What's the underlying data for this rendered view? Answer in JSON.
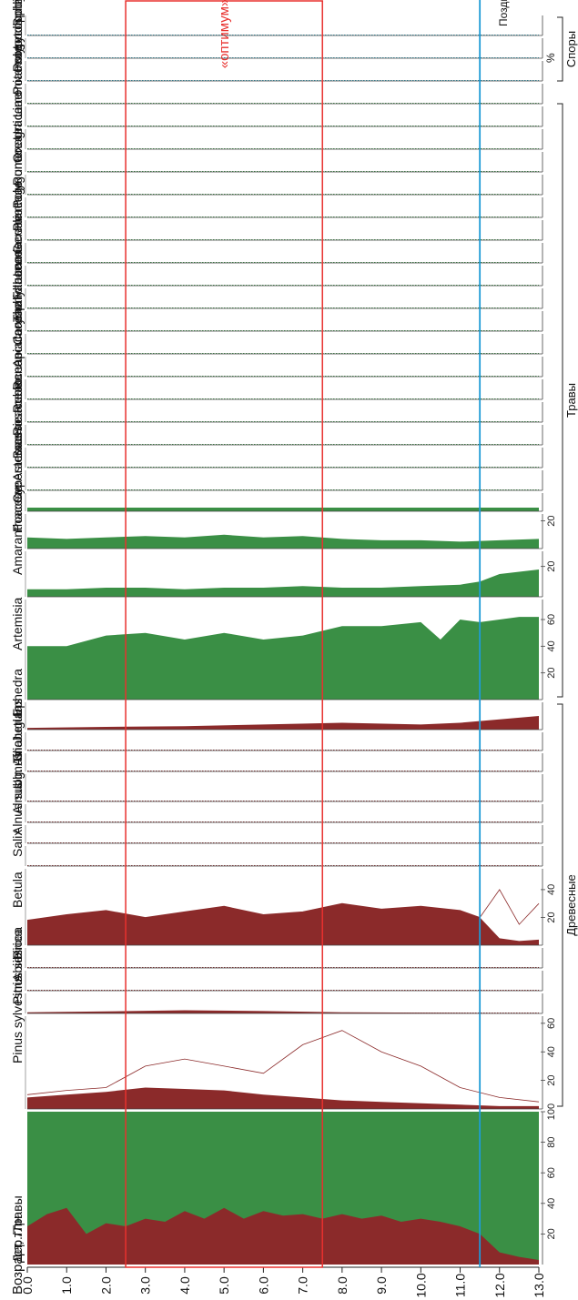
{
  "chart_data": {
    "type": "area",
    "title": "",
    "x_label": "Возраст, тлн",
    "x_ticks": [
      "0.0",
      "1.0",
      "2.0",
      "3.0",
      "4.0",
      "5.0",
      "6.0",
      "7.0",
      "8.0",
      "9.0",
      "10.0",
      "11.0",
      "12.0",
      "13.0"
    ],
    "x_range": [
      0,
      13
    ],
    "percent_label": "%",
    "optimum_label": "«оптимум»",
    "optimum_range_kyr": [
      2.5,
      7.5
    ],
    "younger_dryas_label": "Поздний дриас",
    "younger_dryas_kyr": 11.5,
    "groups": [
      {
        "label": "Древесные",
        "taxa": [
          "Pinus sylvestris",
          "Pinus sibirica",
          "Abies",
          "Picea",
          "Betula",
          "Salix",
          "Alnus subg. Alnobetula",
          "Alnus",
          "Ulmus",
          "Tilia",
          "Juglans",
          "Ephedra"
        ]
      },
      {
        "label": "Травы",
        "taxa": [
          "Artemisia",
          "Amaranthaceae",
          "Poaceae",
          "Cyperaceae",
          "Asteraceae",
          "Brassicaceae",
          "Rosaceae",
          "Rubiaceae",
          "Ranunculaceae",
          "Apiaceae",
          "Caryophyllaceae",
          "Thalictrum",
          "Fabaceae",
          "Lamiaceae",
          "Geraniaceae",
          "Plantago",
          "Polygonaceae",
          "Rumex",
          "Onagraceae",
          "Urtica",
          "Limoniaceae",
          "Potamogeton"
        ]
      },
      {
        "label": "Споры",
        "taxa": [
          "Polypodiophyta",
          "Lycopodium",
          "Sphagnum"
        ]
      }
    ],
    "colors": {
      "trees": "#8b2a2a",
      "herbs": "#3a8f45",
      "spores": "#2f9ab4",
      "optimum": "#e8312e",
      "dryas": "#1e9ad6"
    },
    "ratio": {
      "name": "Дер./Травы",
      "ticks": [
        "20",
        "40",
        "60",
        "80",
        "100"
      ],
      "trees_kyr": [
        0,
        0.5,
        1,
        1.5,
        2,
        2.5,
        3,
        3.5,
        4,
        4.5,
        5,
        5.5,
        6,
        6.5,
        7,
        7.5,
        8,
        8.5,
        9,
        9.5,
        10,
        10.5,
        11,
        11.5,
        12,
        12.5,
        13
      ],
      "trees_pct": [
        25,
        33,
        37,
        20,
        27,
        25,
        30,
        28,
        35,
        30,
        37,
        30,
        35,
        32,
        33,
        30,
        33,
        30,
        32,
        28,
        30,
        28,
        25,
        20,
        8,
        5,
        3
      ]
    },
    "taxa": [
      {
        "name": "Pinus sylvestris",
        "color": "trees",
        "ticks": [
          "20",
          "40",
          "60"
        ],
        "max": 65,
        "kyr": [
          0,
          1,
          2,
          3,
          4,
          5,
          6,
          7,
          8,
          9,
          10,
          11,
          12,
          13
        ],
        "fill": [
          8,
          10,
          12,
          15,
          14,
          13,
          10,
          8,
          6,
          5,
          4,
          3,
          2,
          2
        ],
        "line": [
          10,
          13,
          15,
          30,
          35,
          30,
          25,
          45,
          55,
          40,
          30,
          15,
          8,
          5
        ]
      },
      {
        "name": "Pinus sibirica",
        "color": "trees",
        "max": 5,
        "kyr": [
          0,
          2,
          4,
          6,
          8,
          10,
          12,
          13
        ],
        "fill": [
          0.3,
          0.5,
          0.8,
          0.6,
          0.3,
          0.2,
          0.1,
          0.1
        ]
      },
      {
        "name": "Abies",
        "color": "trees",
        "max": 5,
        "kyr": [
          0,
          2,
          4,
          6,
          8,
          10,
          12,
          13
        ],
        "fill": [
          0,
          0,
          0,
          0,
          0,
          0,
          0,
          0
        ]
      },
      {
        "name": "Picea",
        "color": "trees",
        "max": 5,
        "kyr": [
          0,
          2,
          4,
          6,
          8,
          10,
          12,
          13
        ],
        "fill": [
          0,
          0,
          0,
          0,
          0,
          0,
          0,
          0
        ]
      },
      {
        "name": "Betula",
        "color": "trees",
        "ticks": [
          "20",
          "40"
        ],
        "max": 55,
        "kyr": [
          0,
          1,
          2,
          3,
          4,
          5,
          6,
          7,
          8,
          9,
          10,
          11,
          11.5,
          12,
          12.5,
          13
        ],
        "fill": [
          18,
          22,
          25,
          20,
          24,
          28,
          22,
          24,
          30,
          26,
          28,
          25,
          20,
          5,
          3,
          4
        ],
        "line": [
          18,
          22,
          25,
          20,
          24,
          28,
          22,
          24,
          30,
          26,
          28,
          25,
          20,
          40,
          15,
          30
        ]
      },
      {
        "name": "Salix",
        "color": "trees",
        "max": 5,
        "kyr": [
          0,
          2,
          4,
          6,
          8,
          10,
          12,
          13
        ],
        "fill": [
          0,
          0,
          0,
          0,
          0,
          0,
          0,
          0
        ]
      },
      {
        "name": "Alnus subg. Alnobetula",
        "color": "trees",
        "max": 5,
        "kyr": [
          0,
          2,
          4,
          6,
          8,
          10,
          12,
          13
        ],
        "fill": [
          0,
          0,
          0,
          0,
          0,
          0,
          0,
          0
        ]
      },
      {
        "name": "Alnus",
        "color": "trees",
        "max": 5,
        "kyr": [
          0,
          2,
          4,
          6,
          8,
          10,
          12,
          13
        ],
        "fill": [
          0,
          0,
          0,
          0,
          0,
          0,
          0,
          0
        ]
      },
      {
        "name": "Ulmus",
        "color": "trees",
        "max": 5,
        "kyr": [
          0,
          2,
          4,
          6,
          8,
          10,
          12,
          13
        ],
        "fill": [
          0,
          0,
          0,
          0,
          0,
          0,
          0,
          0
        ]
      },
      {
        "name": "Tilia",
        "color": "trees",
        "max": 5,
        "kyr": [
          0,
          2,
          4,
          6,
          8,
          10,
          12,
          13
        ],
        "fill": [
          0,
          0,
          0,
          0,
          0,
          0,
          0,
          0
        ]
      },
      {
        "name": "Juglans",
        "color": "trees",
        "max": 5,
        "kyr": [
          0,
          2,
          4,
          6,
          8,
          10,
          12,
          13
        ],
        "fill": [
          0,
          0,
          0,
          0,
          0,
          0,
          0,
          0
        ]
      },
      {
        "name": "Ephedra",
        "color": "trees",
        "max": 8,
        "kyr": [
          0,
          2,
          4,
          6,
          8,
          10,
          11,
          12,
          13
        ],
        "fill": [
          0.5,
          0.8,
          1,
          1.5,
          2,
          1.5,
          2,
          3,
          4
        ]
      },
      {
        "name": "Artemisia",
        "color": "herbs",
        "ticks": [
          "20",
          "40",
          "60"
        ],
        "max": 75,
        "kyr": [
          0,
          1,
          2,
          3,
          4,
          5,
          6,
          7,
          8,
          9,
          10,
          10.5,
          11,
          11.5,
          12,
          12.5,
          13
        ],
        "fill": [
          40,
          40,
          48,
          50,
          45,
          50,
          45,
          48,
          55,
          55,
          58,
          45,
          60,
          58,
          60,
          62,
          62
        ]
      },
      {
        "name": "Amaranthaceae",
        "color": "herbs",
        "ticks": [
          "20"
        ],
        "max": 30,
        "kyr": [
          0,
          1,
          2,
          3,
          4,
          5,
          6,
          7,
          8,
          9,
          10,
          11,
          11.5,
          12,
          13
        ],
        "fill": [
          5,
          5,
          6,
          6,
          5,
          6,
          6,
          7,
          6,
          6,
          7,
          8,
          10,
          15,
          18
        ]
      },
      {
        "name": "Poaceae",
        "color": "herbs",
        "ticks": [
          "20"
        ],
        "max": 25,
        "kyr": [
          0,
          1,
          2,
          3,
          4,
          5,
          6,
          7,
          8,
          9,
          10,
          11,
          12,
          13
        ],
        "fill": [
          8,
          7,
          8,
          9,
          8,
          10,
          8,
          9,
          7,
          6,
          6,
          5,
          6,
          7
        ]
      },
      {
        "name": "Cyperaceae",
        "color": "herbs",
        "max": 5,
        "kyr": [
          0,
          2,
          4,
          6,
          8,
          10,
          12,
          13
        ],
        "fill": [
          1,
          1,
          1,
          1,
          1,
          1,
          1,
          1
        ]
      },
      {
        "name": "Asteraceae",
        "color": "herbs",
        "max": 5,
        "kyr": [
          0,
          2,
          4,
          6,
          8,
          10,
          12,
          13
        ],
        "fill": [
          0,
          0,
          0,
          0,
          0,
          0,
          0,
          0
        ]
      },
      {
        "name": "Brassicaceae",
        "color": "herbs",
        "max": 5,
        "kyr": [
          0,
          2,
          4,
          6,
          8,
          10,
          12,
          13
        ],
        "fill": [
          0,
          0,
          0,
          0,
          0,
          0,
          0,
          0
        ]
      },
      {
        "name": "Rosaceae",
        "color": "herbs",
        "max": 5,
        "kyr": [
          0,
          2,
          4,
          6,
          8,
          10,
          12,
          13
        ],
        "fill": [
          0,
          0,
          0,
          0,
          0,
          0,
          0,
          0
        ]
      },
      {
        "name": "Rubiaceae",
        "color": "herbs",
        "max": 5,
        "kyr": [
          0,
          2,
          4,
          6,
          8,
          10,
          12,
          13
        ],
        "fill": [
          0,
          0,
          0,
          0,
          0,
          0,
          0,
          0
        ]
      },
      {
        "name": "Ranunculaceae",
        "color": "herbs",
        "max": 5,
        "kyr": [
          0,
          2,
          4,
          6,
          8,
          10,
          12,
          13
        ],
        "fill": [
          0,
          0,
          0,
          0,
          0,
          0,
          0,
          0
        ]
      },
      {
        "name": "Apiaceae",
        "color": "herbs",
        "max": 5,
        "kyr": [
          0,
          2,
          4,
          6,
          8,
          10,
          12,
          13
        ],
        "fill": [
          0,
          0,
          0,
          0,
          0,
          0,
          0,
          0
        ]
      },
      {
        "name": "Caryophyllaceae",
        "color": "herbs",
        "max": 5,
        "kyr": [
          0,
          2,
          4,
          6,
          8,
          10,
          12,
          13
        ],
        "fill": [
          0,
          0,
          0,
          0,
          0,
          0,
          0,
          0
        ]
      },
      {
        "name": "Thalictrum",
        "color": "herbs",
        "max": 5,
        "kyr": [
          0,
          2,
          4,
          6,
          8,
          10,
          12,
          13
        ],
        "fill": [
          0,
          0,
          0,
          0,
          0,
          0,
          0,
          0
        ]
      },
      {
        "name": "Fabaceae",
        "color": "herbs",
        "max": 5,
        "kyr": [
          0,
          2,
          4,
          6,
          8,
          10,
          12,
          13
        ],
        "fill": [
          0,
          0,
          0,
          0,
          0,
          0,
          0,
          0
        ]
      },
      {
        "name": "Lamiaceae",
        "color": "herbs",
        "max": 5,
        "kyr": [
          0,
          2,
          4,
          6,
          8,
          10,
          12,
          13
        ],
        "fill": [
          0,
          0,
          0,
          0,
          0,
          0,
          0,
          0
        ]
      },
      {
        "name": "Geraniaceae",
        "color": "herbs",
        "max": 5,
        "kyr": [
          0,
          2,
          4,
          6,
          8,
          10,
          12,
          13
        ],
        "fill": [
          0,
          0,
          0,
          0,
          0,
          0,
          0,
          0
        ]
      },
      {
        "name": "Plantago",
        "color": "herbs",
        "max": 5,
        "kyr": [
          0,
          2,
          4,
          6,
          8,
          10,
          12,
          13
        ],
        "fill": [
          0,
          0,
          0,
          0,
          0,
          0,
          0,
          0
        ]
      },
      {
        "name": "Polygonaceae",
        "color": "herbs",
        "max": 5,
        "kyr": [
          0,
          2,
          4,
          6,
          8,
          10,
          12,
          13
        ],
        "fill": [
          0,
          0,
          0,
          0,
          0,
          0,
          0,
          0
        ]
      },
      {
        "name": "Rumex",
        "color": "herbs",
        "max": 5,
        "kyr": [
          0,
          2,
          4,
          6,
          8,
          10,
          12,
          13
        ],
        "fill": [
          0,
          0,
          0,
          0,
          0,
          0,
          0,
          0
        ]
      },
      {
        "name": "Onagraceae",
        "color": "herbs",
        "max": 5,
        "kyr": [
          0,
          2,
          4,
          6,
          8,
          10,
          12,
          13
        ],
        "fill": [
          0,
          0,
          0,
          0,
          0,
          0,
          0,
          0
        ]
      },
      {
        "name": "Urtica",
        "color": "herbs",
        "max": 5,
        "kyr": [
          0,
          2,
          4,
          6,
          8,
          10,
          12,
          13
        ],
        "fill": [
          0,
          0,
          0,
          0,
          0,
          0,
          0,
          0
        ]
      },
      {
        "name": "Limoniaceae",
        "color": "herbs",
        "max": 5,
        "kyr": [
          0,
          2,
          4,
          6,
          8,
          10,
          12,
          13
        ],
        "fill": [
          0,
          0,
          0,
          0,
          0,
          0,
          0,
          0
        ]
      },
      {
        "name": "Potamogeton",
        "color": "herbs",
        "max": 5,
        "kyr": [
          0,
          2,
          4,
          6,
          8,
          10,
          12,
          13
        ],
        "fill": [
          0,
          0,
          0,
          0,
          0,
          0,
          0,
          0
        ]
      },
      {
        "name": "Polypodiophyta",
        "color": "spores",
        "max": 5,
        "kyr": [
          0,
          2,
          4,
          6,
          8,
          10,
          12,
          13
        ],
        "fill": [
          0,
          0,
          0,
          0,
          0,
          0,
          0,
          0
        ]
      },
      {
        "name": "Lycopodium",
        "color": "spores",
        "max": 5,
        "kyr": [
          0,
          2,
          4,
          6,
          8,
          10,
          12,
          13
        ],
        "fill": [
          0,
          0,
          0,
          0,
          0,
          0,
          0,
          0
        ]
      },
      {
        "name": "Sphagnum",
        "color": "spores",
        "max": 5,
        "kyr": [
          0,
          2,
          4,
          6,
          8,
          10,
          12,
          13
        ],
        "fill": [
          0,
          0,
          0,
          0,
          0,
          0,
          0,
          0
        ]
      }
    ]
  }
}
